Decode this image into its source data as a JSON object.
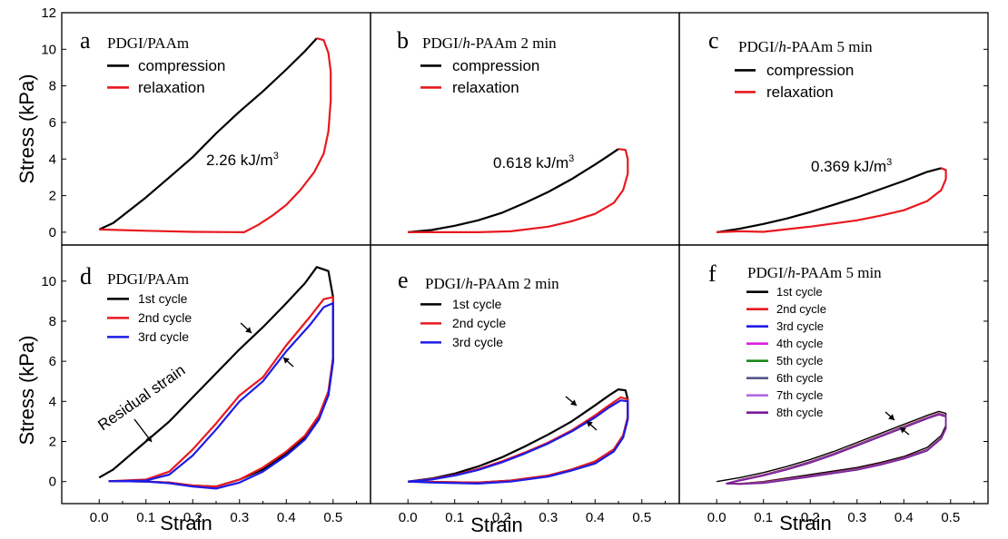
{
  "figure": {
    "y_axis_label": "Stress (kPa)",
    "x_axis_label": "Strain"
  },
  "chart_data": [
    {
      "type": "line",
      "panel": "a",
      "title": "PDGI/PAAm",
      "xlabel": "",
      "ylabel": "Stress (kPa)",
      "xlim": [
        -0.08,
        0.58
      ],
      "ylim": [
        -0.7,
        12
      ],
      "yticks": [
        0,
        2,
        4,
        6,
        8,
        10,
        12
      ],
      "xticks": [],
      "annotations": [
        {
          "text": "2.26 kJ/m",
          "sup": "3"
        }
      ],
      "series": [
        {
          "name": "compression",
          "color": "#000000",
          "x": [
            0.0,
            0.03,
            0.06,
            0.1,
            0.15,
            0.2,
            0.25,
            0.3,
            0.35,
            0.4,
            0.44,
            0.465
          ],
          "y": [
            0.15,
            0.5,
            1.1,
            1.9,
            3.0,
            4.1,
            5.4,
            6.6,
            7.7,
            8.9,
            9.9,
            10.6
          ]
        },
        {
          "name": "relaxation",
          "color": "#e8191f",
          "x": [
            0.465,
            0.48,
            0.49,
            0.495,
            0.495,
            0.49,
            0.48,
            0.46,
            0.43,
            0.4,
            0.37,
            0.34,
            0.31,
            0.2,
            0.1,
            0.0
          ],
          "y": [
            10.6,
            10.5,
            9.8,
            8.8,
            7.2,
            5.5,
            4.3,
            3.3,
            2.3,
            1.5,
            0.9,
            0.4,
            0.0,
            0.02,
            0.08,
            0.15
          ]
        }
      ]
    },
    {
      "type": "line",
      "panel": "b",
      "title": "PDGI/h-PAAm 2 min",
      "xlim": [
        -0.08,
        0.58
      ],
      "ylim": [
        -0.7,
        12
      ],
      "yticks": [],
      "xticks": [],
      "annotations": [
        {
          "text": "0.618 kJ/m",
          "sup": "3"
        }
      ],
      "series": [
        {
          "name": "compression",
          "color": "#000000",
          "x": [
            0.0,
            0.05,
            0.1,
            0.15,
            0.2,
            0.25,
            0.3,
            0.35,
            0.4,
            0.43,
            0.45
          ],
          "y": [
            0.0,
            0.12,
            0.35,
            0.65,
            1.05,
            1.6,
            2.2,
            2.9,
            3.7,
            4.2,
            4.55
          ]
        },
        {
          "name": "relaxation",
          "color": "#e8191f",
          "x": [
            0.45,
            0.465,
            0.47,
            0.47,
            0.46,
            0.44,
            0.4,
            0.35,
            0.3,
            0.22,
            0.15,
            0.0
          ],
          "y": [
            4.55,
            4.5,
            4.0,
            3.2,
            2.3,
            1.6,
            1.0,
            0.6,
            0.3,
            0.05,
            0.0,
            0.0
          ]
        }
      ]
    },
    {
      "type": "line",
      "panel": "c",
      "title": "PDGI/h-PAAm 5 min",
      "xlim": [
        -0.08,
        0.58
      ],
      "ylim": [
        -0.7,
        12
      ],
      "yticks": [],
      "xticks": [],
      "annotations": [
        {
          "text": "0.369 kJ/m",
          "sup": "3"
        }
      ],
      "series": [
        {
          "name": "compression",
          "color": "#000000",
          "x": [
            0.0,
            0.05,
            0.1,
            0.15,
            0.2,
            0.25,
            0.3,
            0.35,
            0.4,
            0.45,
            0.48
          ],
          "y": [
            0.0,
            0.2,
            0.45,
            0.75,
            1.1,
            1.5,
            1.9,
            2.35,
            2.8,
            3.3,
            3.5
          ]
        },
        {
          "name": "relaxation",
          "color": "#e8191f",
          "x": [
            0.48,
            0.49,
            0.49,
            0.48,
            0.45,
            0.4,
            0.35,
            0.3,
            0.2,
            0.1,
            0.05,
            0.0
          ],
          "y": [
            3.5,
            3.4,
            2.9,
            2.3,
            1.7,
            1.2,
            0.9,
            0.65,
            0.3,
            0.02,
            0.05,
            0.0
          ]
        }
      ]
    },
    {
      "type": "line",
      "panel": "d",
      "title": "PDGI/PAAm",
      "xlabel": "Strain",
      "ylabel": "Stress (kPa)",
      "xlim": [
        -0.08,
        0.58
      ],
      "ylim": [
        -1.1,
        11.8
      ],
      "yticks": [
        0,
        2,
        4,
        6,
        8,
        10
      ],
      "xticks": [
        0.0,
        0.1,
        0.2,
        0.3,
        0.4,
        0.5
      ],
      "annotations": [
        {
          "text": "Residual strain"
        }
      ],
      "series": [
        {
          "name": "1st cycle",
          "color": "#000000",
          "x": [
            0.0,
            0.03,
            0.06,
            0.1,
            0.15,
            0.2,
            0.25,
            0.3,
            0.35,
            0.4,
            0.44,
            0.465,
            0.49,
            0.5,
            0.5,
            0.49,
            0.47,
            0.44,
            0.4,
            0.35,
            0.3,
            0.25,
            0.2,
            0.15,
            0.1,
            0.05,
            0.02
          ],
          "y": [
            0.2,
            0.6,
            1.2,
            2.0,
            3.0,
            4.2,
            5.4,
            6.6,
            7.7,
            8.9,
            9.9,
            10.7,
            10.5,
            9.2,
            6.0,
            4.3,
            3.2,
            2.2,
            1.4,
            0.6,
            0.1,
            -0.25,
            -0.2,
            -0.05,
            0.0,
            0.02,
            0.02
          ]
        },
        {
          "name": "2nd cycle",
          "color": "#e8191f",
          "x": [
            0.02,
            0.1,
            0.15,
            0.2,
            0.25,
            0.3,
            0.35,
            0.4,
            0.45,
            0.48,
            0.5,
            0.5,
            0.49,
            0.47,
            0.44,
            0.4,
            0.35,
            0.3,
            0.25,
            0.2,
            0.15,
            0.1,
            0.05,
            0.02
          ],
          "y": [
            0.02,
            0.1,
            0.5,
            1.6,
            2.9,
            4.3,
            5.2,
            6.8,
            8.2,
            9.1,
            9.2,
            6.2,
            4.5,
            3.3,
            2.3,
            1.5,
            0.7,
            0.1,
            -0.25,
            -0.2,
            -0.05,
            0.0,
            0.02,
            0.02
          ]
        },
        {
          "name": "3rd cycle",
          "color": "#1c1ce6",
          "x": [
            0.02,
            0.1,
            0.15,
            0.2,
            0.25,
            0.3,
            0.35,
            0.4,
            0.45,
            0.48,
            0.5,
            0.5,
            0.49,
            0.47,
            0.44,
            0.4,
            0.35,
            0.3,
            0.25,
            0.2,
            0.15,
            0.1,
            0.05,
            0.02
          ],
          "y": [
            0.02,
            0.05,
            0.35,
            1.3,
            2.6,
            4.0,
            5.0,
            6.5,
            7.8,
            8.7,
            8.9,
            6.0,
            4.3,
            3.1,
            2.1,
            1.3,
            0.5,
            -0.05,
            -0.35,
            -0.25,
            -0.08,
            0.0,
            0.02,
            0.02
          ]
        }
      ]
    },
    {
      "type": "line",
      "panel": "e",
      "title": "PDGI/h-PAAm 2 min",
      "xlabel": "Strain",
      "xlim": [
        -0.08,
        0.58
      ],
      "ylim": [
        -1.1,
        11.8
      ],
      "yticks": [],
      "xticks": [
        0.0,
        0.1,
        0.2,
        0.3,
        0.4,
        0.5
      ],
      "series": [
        {
          "name": "1st cycle",
          "color": "#000000",
          "x": [
            0.0,
            0.05,
            0.1,
            0.15,
            0.2,
            0.25,
            0.3,
            0.35,
            0.4,
            0.43,
            0.45,
            0.465,
            0.47,
            0.47,
            0.46,
            0.44,
            0.4,
            0.35,
            0.3,
            0.22,
            0.15,
            0.05,
            0.0
          ],
          "y": [
            0.0,
            0.15,
            0.4,
            0.75,
            1.2,
            1.75,
            2.35,
            3.0,
            3.8,
            4.3,
            4.6,
            4.55,
            4.1,
            3.2,
            2.3,
            1.6,
            1.0,
            0.6,
            0.3,
            0.05,
            -0.05,
            -0.02,
            0.0
          ]
        },
        {
          "name": "2nd cycle",
          "color": "#e8191f",
          "x": [
            0.0,
            0.05,
            0.1,
            0.15,
            0.2,
            0.25,
            0.3,
            0.35,
            0.4,
            0.43,
            0.455,
            0.47,
            0.47,
            0.46,
            0.44,
            0.4,
            0.35,
            0.3,
            0.22,
            0.15,
            0.05,
            0.0
          ],
          "y": [
            0.0,
            0.12,
            0.32,
            0.62,
            1.0,
            1.45,
            1.95,
            2.55,
            3.3,
            3.8,
            4.2,
            4.1,
            3.2,
            2.3,
            1.6,
            1.0,
            0.6,
            0.3,
            0.05,
            -0.05,
            -0.02,
            0.0
          ]
        },
        {
          "name": "3rd cycle",
          "color": "#1c1ce6",
          "x": [
            0.0,
            0.05,
            0.1,
            0.15,
            0.2,
            0.25,
            0.3,
            0.35,
            0.4,
            0.43,
            0.455,
            0.47,
            0.47,
            0.46,
            0.44,
            0.4,
            0.35,
            0.3,
            0.22,
            0.15,
            0.05,
            0.0
          ],
          "y": [
            0.0,
            0.1,
            0.3,
            0.58,
            0.95,
            1.4,
            1.9,
            2.5,
            3.2,
            3.7,
            4.05,
            4.0,
            3.1,
            2.2,
            1.5,
            0.9,
            0.55,
            0.25,
            0.0,
            -0.1,
            -0.05,
            0.0
          ]
        }
      ]
    },
    {
      "type": "line",
      "panel": "f",
      "title": "PDGI/h-PAAm 5 min",
      "xlabel": "Strain",
      "xlim": [
        -0.08,
        0.58
      ],
      "ylim": [
        -1.1,
        11.8
      ],
      "yticks": [],
      "xticks": [
        0.0,
        0.1,
        0.2,
        0.3,
        0.4,
        0.5
      ],
      "series": [
        {
          "name": "1st cycle",
          "color": "#000000",
          "x": [
            0.0,
            0.05,
            0.1,
            0.15,
            0.2,
            0.25,
            0.3,
            0.35,
            0.4,
            0.45,
            0.475,
            0.49,
            0.49,
            0.48,
            0.45,
            0.4,
            0.35,
            0.3,
            0.2,
            0.1,
            0.05,
            0.02
          ],
          "y": [
            0.0,
            0.2,
            0.45,
            0.75,
            1.1,
            1.5,
            1.95,
            2.4,
            2.85,
            3.3,
            3.5,
            3.4,
            2.8,
            2.3,
            1.7,
            1.25,
            0.95,
            0.7,
            0.35,
            0.0,
            -0.1,
            -0.1
          ]
        },
        {
          "name": "2nd cycle",
          "color": "#e8191f",
          "x": [
            0.02,
            0.05,
            0.1,
            0.15,
            0.2,
            0.25,
            0.3,
            0.35,
            0.4,
            0.45,
            0.475,
            0.49,
            0.49,
            0.48,
            0.45,
            0.4,
            0.35,
            0.3,
            0.2,
            0.1,
            0.05,
            0.02
          ],
          "y": [
            -0.1,
            0.1,
            0.35,
            0.65,
            1.0,
            1.4,
            1.85,
            2.3,
            2.75,
            3.2,
            3.4,
            3.3,
            2.7,
            2.2,
            1.6,
            1.2,
            0.9,
            0.65,
            0.3,
            -0.02,
            -0.1,
            -0.1
          ]
        },
        {
          "name": "3rd cycle",
          "color": "#1c1ce6",
          "x": [
            0.02,
            0.05,
            0.1,
            0.15,
            0.2,
            0.25,
            0.3,
            0.35,
            0.4,
            0.45,
            0.475,
            0.49,
            0.49,
            0.48,
            0.45,
            0.4,
            0.35,
            0.3,
            0.2,
            0.1,
            0.05,
            0.02
          ],
          "y": [
            -0.1,
            0.08,
            0.33,
            0.63,
            0.98,
            1.38,
            1.83,
            2.28,
            2.73,
            3.18,
            3.38,
            3.28,
            2.68,
            2.18,
            1.58,
            1.18,
            0.88,
            0.63,
            0.28,
            -0.04,
            -0.12,
            -0.1
          ]
        },
        {
          "name": "4th cycle",
          "color": "#e01ee0",
          "x": [
            0.02,
            0.05,
            0.1,
            0.15,
            0.2,
            0.25,
            0.3,
            0.35,
            0.4,
            0.45,
            0.475,
            0.49,
            0.49,
            0.48,
            0.45,
            0.4,
            0.35,
            0.3,
            0.2,
            0.1,
            0.05,
            0.02
          ],
          "y": [
            -0.1,
            0.07,
            0.32,
            0.62,
            0.97,
            1.37,
            1.82,
            2.27,
            2.72,
            3.17,
            3.37,
            3.27,
            2.67,
            2.17,
            1.57,
            1.17,
            0.87,
            0.62,
            0.27,
            -0.05,
            -0.12,
            -0.1
          ]
        },
        {
          "name": "5th cycle",
          "color": "#1a8a1a",
          "x": [
            0.02,
            0.05,
            0.1,
            0.15,
            0.2,
            0.25,
            0.3,
            0.35,
            0.4,
            0.45,
            0.475,
            0.49,
            0.49,
            0.48,
            0.45,
            0.4,
            0.35,
            0.3,
            0.2,
            0.1,
            0.05,
            0.02
          ],
          "y": [
            -0.1,
            0.06,
            0.31,
            0.61,
            0.96,
            1.36,
            1.81,
            2.26,
            2.71,
            3.16,
            3.36,
            3.26,
            2.66,
            2.16,
            1.56,
            1.16,
            0.86,
            0.61,
            0.26,
            -0.06,
            -0.12,
            -0.1
          ]
        },
        {
          "name": "6th cycle",
          "color": "#55558a",
          "x": [
            0.02,
            0.05,
            0.1,
            0.15,
            0.2,
            0.25,
            0.3,
            0.35,
            0.4,
            0.45,
            0.475,
            0.49,
            0.49,
            0.48,
            0.45,
            0.4,
            0.35,
            0.3,
            0.2,
            0.1,
            0.05,
            0.02
          ],
          "y": [
            -0.1,
            0.05,
            0.3,
            0.6,
            0.95,
            1.35,
            1.8,
            2.25,
            2.7,
            3.15,
            3.35,
            3.25,
            2.65,
            2.15,
            1.55,
            1.15,
            0.85,
            0.6,
            0.25,
            -0.07,
            -0.13,
            -0.1
          ]
        },
        {
          "name": "7th cycle",
          "color": "#b06ce0",
          "x": [
            0.02,
            0.05,
            0.1,
            0.15,
            0.2,
            0.25,
            0.3,
            0.35,
            0.4,
            0.45,
            0.475,
            0.49,
            0.49,
            0.48,
            0.45,
            0.4,
            0.35,
            0.3,
            0.2,
            0.1,
            0.05,
            0.02
          ],
          "y": [
            -0.1,
            0.05,
            0.3,
            0.6,
            0.94,
            1.34,
            1.79,
            2.24,
            2.69,
            3.14,
            3.34,
            3.24,
            2.64,
            2.14,
            1.54,
            1.14,
            0.84,
            0.59,
            0.24,
            -0.07,
            -0.13,
            -0.1
          ]
        },
        {
          "name": "8th cycle",
          "color": "#7a1a9a",
          "x": [
            0.02,
            0.05,
            0.1,
            0.15,
            0.2,
            0.25,
            0.3,
            0.35,
            0.4,
            0.45,
            0.475,
            0.49,
            0.49,
            0.48,
            0.45,
            0.4,
            0.35,
            0.3,
            0.2,
            0.1,
            0.05,
            0.02
          ],
          "y": [
            -0.1,
            0.04,
            0.29,
            0.59,
            0.93,
            1.33,
            1.78,
            2.23,
            2.68,
            3.13,
            3.33,
            3.23,
            2.63,
            2.13,
            1.53,
            1.13,
            0.83,
            0.58,
            0.23,
            -0.08,
            -0.13,
            -0.1
          ]
        }
      ]
    }
  ]
}
